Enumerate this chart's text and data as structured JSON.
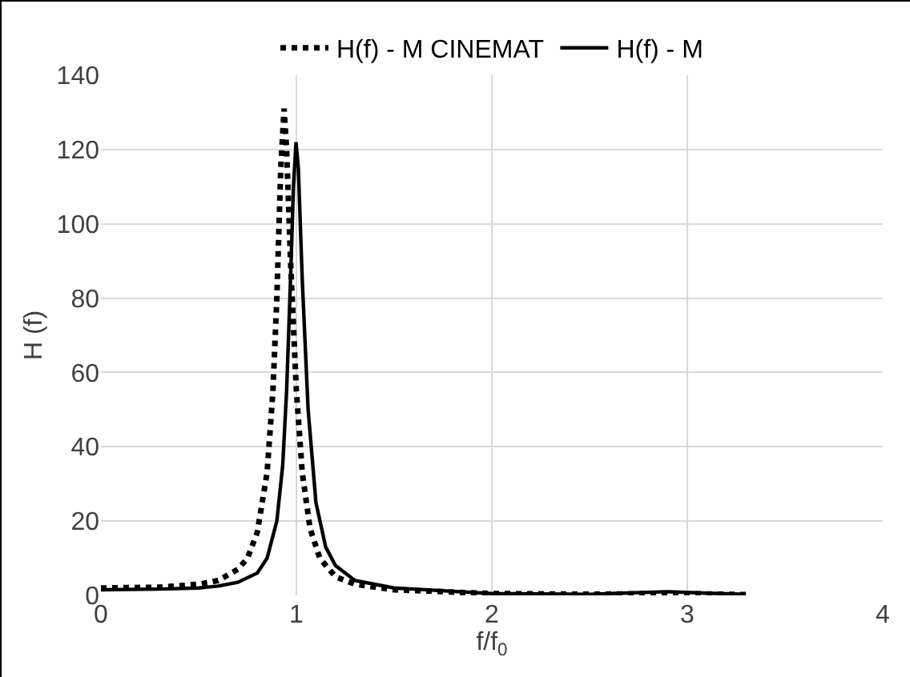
{
  "chart_data": {
    "type": "line",
    "xlabel": "f/f$_{0}$",
    "ylabel": "H (f)",
    "xlim": [
      0,
      4
    ],
    "xticks": [
      0,
      1,
      2,
      3,
      4
    ],
    "ylim": [
      0,
      140
    ],
    "yticks": [
      0,
      20,
      40,
      60,
      80,
      100,
      120,
      140
    ],
    "grid": true,
    "legend": "top",
    "marker": "none",
    "series": [
      {
        "name": "H(f) - M CINEMAT",
        "color": "#000000",
        "line_style": "dotted",
        "x": [
          0,
          0.3,
          0.5,
          0.6,
          0.7,
          0.75,
          0.8,
          0.85,
          0.88,
          0.9,
          0.92,
          0.937,
          0.95,
          0.97,
          1.0,
          1.03,
          1.07,
          1.12,
          1.2,
          1.3,
          1.5,
          2,
          2.5,
          2.9,
          3.1,
          3.3
        ],
        "values": [
          2,
          2.2,
          3,
          4,
          7,
          10,
          17,
          33,
          55,
          80,
          115,
          131,
          120,
          90,
          55,
          33,
          18,
          10,
          5,
          3,
          1.5,
          0.5,
          0.3,
          0.5,
          0.4,
          0.2
        ]
      },
      {
        "name": "H(f) - M",
        "color": "#000000",
        "line_style": "solid",
        "x": [
          0,
          0.3,
          0.5,
          0.6,
          0.7,
          0.8,
          0.85,
          0.9,
          0.93,
          0.95,
          0.97,
          0.985,
          0.998,
          1.01,
          1.03,
          1.06,
          1.1,
          1.15,
          1.2,
          1.3,
          1.5,
          2,
          2.5,
          2.9,
          3.1,
          3.3
        ],
        "values": [
          1.5,
          1.7,
          2,
          2.5,
          3.5,
          6,
          10,
          20,
          35,
          55,
          85,
          110,
          122,
          115,
          85,
          50,
          25,
          13,
          8,
          4,
          2,
          0.5,
          0.3,
          1,
          0.6,
          0.3
        ]
      }
    ]
  }
}
